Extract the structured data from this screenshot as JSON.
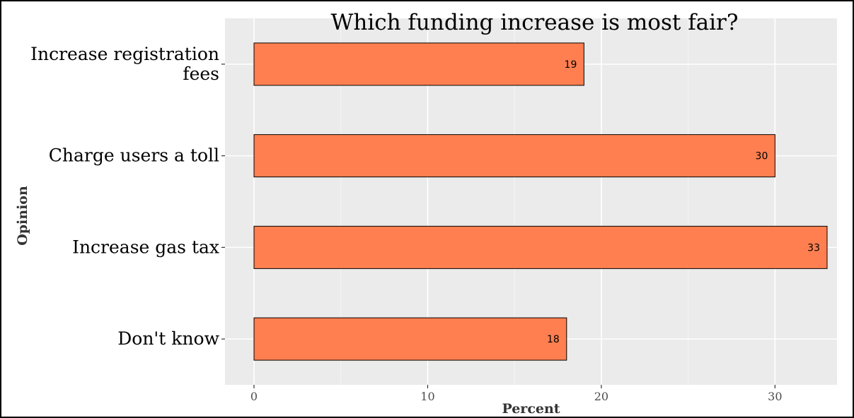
{
  "chart_data": {
    "type": "bar",
    "orientation": "horizontal",
    "title": "Which funding increase is most fair?",
    "xlabel": "Percent",
    "ylabel": "Opinion",
    "categories": [
      [
        "Increase registration",
        "fees"
      ],
      [
        "Charge users a toll"
      ],
      [
        "Increase gas tax"
      ],
      [
        "Don't know"
      ]
    ],
    "values": [
      19,
      30,
      33,
      18
    ],
    "data_labels": [
      "19",
      "30",
      "33",
      "18"
    ],
    "xlim": [
      0,
      33.5
    ],
    "xticks": [
      0,
      10,
      20,
      30
    ],
    "xtick_labels": [
      "0",
      "10",
      "20",
      "30"
    ],
    "grid": true,
    "colors": {
      "bar_fill": "#FF7F50",
      "bar_stroke": "#000000",
      "panel_bg": "#EBEBEB",
      "grid_major": "#FFFFFF",
      "grid_minor": "#F5F5F5"
    }
  }
}
